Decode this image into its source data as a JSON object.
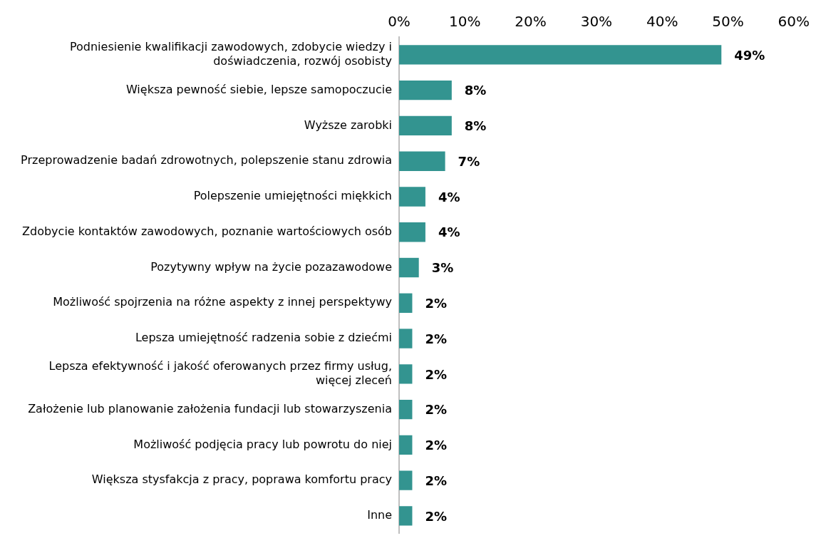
{
  "chart_data": {
    "type": "bar",
    "orientation": "horizontal",
    "categories": [
      "Podniesienie kwalifikacji zawodowych, zdobycie wiedzy i doświadczenia, rozwój osobisty",
      "Większa pewność siebie, lepsze samopoczucie",
      "Wyższe zarobki",
      "Przeprowadzenie badań zdrowotnych, polepszenie stanu zdrowia",
      "Polepszenie umiejętności miękkich",
      "Zdobycie kontaktów zawodowych, poznanie wartościowych osób",
      "Pozytywny wpływ na życie pozazawodowe",
      "Możliwość spojrzenia na różne aspekty z innej perspektywy",
      "Lepsza umiejętność radzenia sobie z dziećmi",
      "Lepsza efektywność i jakość oferowanych przez firmy usług, więcej zleceń",
      "Założenie lub planowanie założenia fundacji lub stowarzyszenia",
      "Możliwość podjęcia pracy lub powrotu do niej",
      "Większa stysfakcja z pracy, poprawa komfortu pracy",
      "Inne"
    ],
    "values": [
      49,
      8,
      8,
      7,
      4,
      4,
      3,
      2,
      2,
      2,
      2,
      2,
      2,
      2
    ],
    "value_labels": [
      "49%",
      "8%",
      "8%",
      "7%",
      "4%",
      "4%",
      "3%",
      "2%",
      "2%",
      "2%",
      "2%",
      "2%",
      "2%",
      "2%"
    ],
    "color": "#339490",
    "xlim": [
      0,
      60
    ],
    "xticks": [
      {
        "value": 0,
        "label": "0%"
      },
      {
        "value": 10,
        "label": "10%"
      },
      {
        "value": 20,
        "label": "20%"
      },
      {
        "value": 30,
        "label": "30%"
      },
      {
        "value": 40,
        "label": "40%"
      },
      {
        "value": 50,
        "label": "50%"
      },
      {
        "value": 60,
        "label": "60%"
      }
    ],
    "grid": false,
    "legend": false
  }
}
